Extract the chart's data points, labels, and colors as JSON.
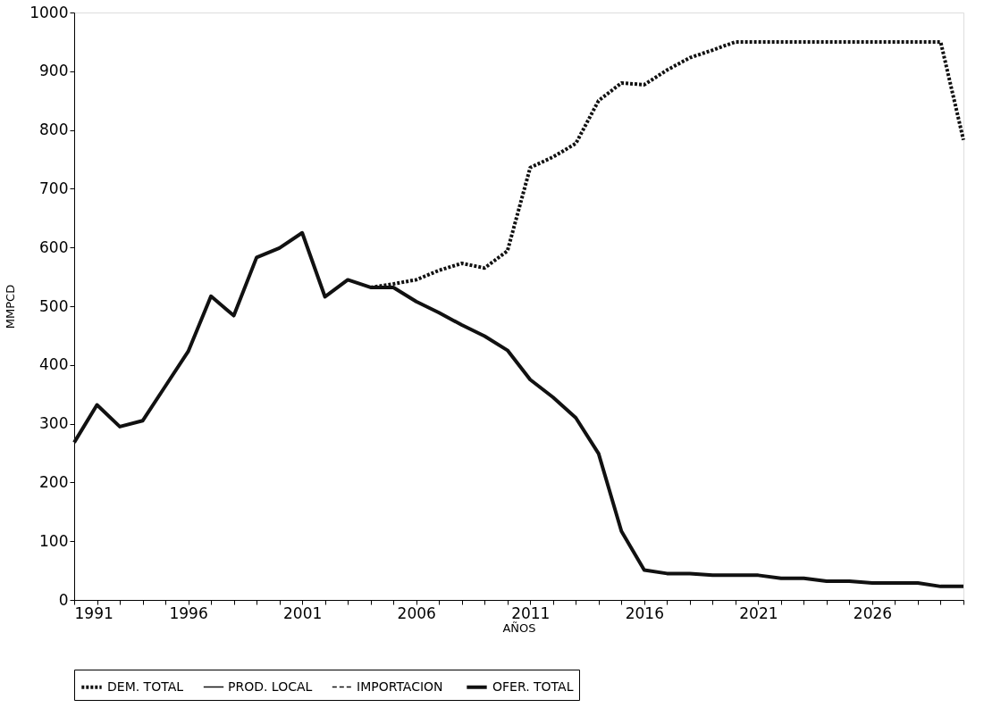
{
  "chart_data": {
    "type": "line",
    "xlabel": "AÑOS",
    "ylabel": "MMPCD",
    "x": [
      1991,
      1992,
      1993,
      1994,
      1995,
      1996,
      1997,
      1998,
      1999,
      2000,
      2001,
      2002,
      2003,
      2004,
      2005,
      2006,
      2007,
      2008,
      2009,
      2010,
      2011,
      2012,
      2013,
      2014,
      2015,
      2016,
      2017,
      2018,
      2019,
      2020,
      2021,
      2022,
      2023,
      2024,
      2025,
      2026,
      2027,
      2028,
      2029,
      2030
    ],
    "series": [
      {
        "name": "DEM. TOTAL",
        "color": "#111111",
        "line_style": "dotted",
        "values": [
          null,
          null,
          null,
          null,
          null,
          null,
          null,
          null,
          null,
          null,
          null,
          null,
          null,
          532,
          538,
          545,
          561,
          573,
          565,
          594,
          736,
          754,
          777,
          850,
          880,
          877,
          902,
          923,
          936,
          950,
          950,
          950,
          950,
          950,
          950,
          950,
          950,
          950,
          950,
          783
        ]
      },
      {
        "name": "PROD. LOCAL",
        "color": "#111111",
        "line_style": "solid",
        "values": [
          null,
          null,
          null,
          null,
          null,
          null,
          null,
          null,
          null,
          null,
          null,
          null,
          null,
          null,
          null,
          null,
          null,
          null,
          null,
          null,
          null,
          null,
          null,
          null,
          null,
          null,
          null,
          null,
          null,
          null,
          null,
          null,
          null,
          null,
          null,
          null,
          null,
          null,
          null,
          null
        ]
      },
      {
        "name": "IMPORTACION",
        "color": "#111111",
        "line_style": "dashed",
        "values": [
          null,
          null,
          null,
          null,
          null,
          null,
          null,
          null,
          null,
          null,
          null,
          null,
          null,
          null,
          null,
          null,
          null,
          null,
          null,
          null,
          null,
          null,
          null,
          null,
          null,
          null,
          null,
          null,
          null,
          null,
          null,
          null,
          null,
          null,
          null,
          null,
          null,
          null,
          null,
          null
        ]
      },
      {
        "name": "OFER. TOTAL",
        "color": "#111111",
        "line_style": "solid",
        "values": [
          268,
          332,
          295,
          305,
          364,
          423,
          517,
          484,
          583,
          599,
          625,
          516,
          545,
          532,
          532,
          508,
          489,
          468,
          449,
          425,
          375,
          345,
          310,
          249,
          117,
          51,
          45,
          45,
          42,
          42,
          42,
          37,
          37,
          32,
          32,
          29,
          29,
          29,
          23,
          23
        ]
      }
    ],
    "xlim": [
      1991,
      2030
    ],
    "xticks": [
      1991,
      {
        "value": 1992,
        "label": null
      },
      {
        "value": 1993,
        "label": null
      },
      {
        "value": 1994,
        "label": null
      },
      {
        "value": 1995,
        "label": null
      },
      1996,
      {
        "value": 1997,
        "label": null
      },
      {
        "value": 1998,
        "label": null
      },
      {
        "value": 1999,
        "label": null
      },
      {
        "value": 2000,
        "label": null
      },
      2001,
      {
        "value": 2002,
        "label": null
      },
      {
        "value": 2003,
        "label": null
      },
      {
        "value": 2004,
        "label": null
      },
      {
        "value": 2005,
        "label": null
      },
      2006,
      {
        "value": 2007,
        "label": null
      },
      {
        "value": 2008,
        "label": null
      },
      {
        "value": 2009,
        "label": null
      },
      {
        "value": 2010,
        "label": null
      },
      2011,
      {
        "value": 2012,
        "label": null
      },
      {
        "value": 2013,
        "label": null
      },
      {
        "value": 2014,
        "label": null
      },
      {
        "value": 2015,
        "label": null
      },
      2016,
      {
        "value": 2017,
        "label": null
      },
      {
        "value": 2018,
        "label": null
      },
      {
        "value": 2019,
        "label": null
      },
      {
        "value": 2020,
        "label": null
      },
      2021,
      {
        "value": 2022,
        "label": null
      },
      {
        "value": 2023,
        "label": null
      },
      {
        "value": 2024,
        "label": null
      },
      {
        "value": 2025,
        "label": null
      },
      2026,
      {
        "value": 2027,
        "label": null
      },
      {
        "value": 2028,
        "label": null
      },
      {
        "value": 2029,
        "label": null
      },
      {
        "value": 2030,
        "label": null
      }
    ],
    "ylim": [
      0,
      1000
    ],
    "yticks": [
      0,
      100,
      200,
      300,
      400,
      500,
      600,
      700,
      800,
      900,
      1000
    ],
    "grid": false,
    "legend": "bottom"
  }
}
